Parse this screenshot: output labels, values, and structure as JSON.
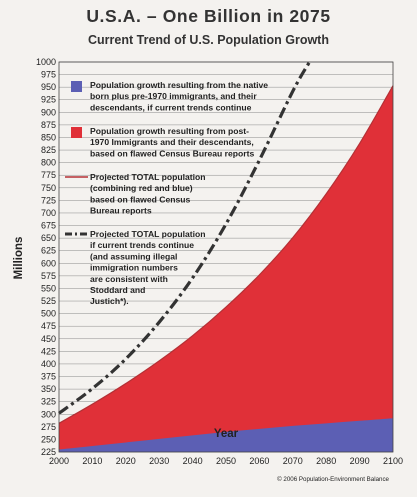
{
  "chart_data": {
    "type": "area",
    "title": "U.S.A. – One Billion in 2075",
    "subtitle": "Current Trend of U.S. Population Growth",
    "xlabel": "Year",
    "ylabel": "Millions",
    "xlim": [
      2000,
      2100
    ],
    "ylim": [
      225,
      1000
    ],
    "x_ticks": [
      2000,
      2010,
      2020,
      2030,
      2040,
      2050,
      2060,
      2070,
      2080,
      2090,
      2100
    ],
    "y_tick_step": 25,
    "x": [
      2000,
      2010,
      2020,
      2030,
      2040,
      2050,
      2060,
      2070,
      2080,
      2090,
      2100
    ],
    "series": [
      {
        "name": "Population growth resulting from the native born plus pre-1970 immigrants, and their descendants, if current trends continue",
        "color": "#5c5fb4",
        "values": [
          230,
          237,
          244,
          251,
          258,
          265,
          271,
          277,
          282,
          287,
          292
        ]
      },
      {
        "name": "Population growth resulting from post-1970 Immigrants and their descendants, based on flawed Census Bureau reports",
        "color": "#e03038",
        "values": [
          282,
          320,
          361,
          406,
          456,
          513,
          577,
          651,
          738,
          838,
          953
        ]
      },
      {
        "name": "Projected TOTAL population (combining red and blue) based on flawed Census Bureau reports",
        "color": "#b53035",
        "values": [
          282,
          320,
          361,
          406,
          456,
          513,
          577,
          651,
          738,
          838,
          953
        ]
      },
      {
        "name": "Projected TOTAL population if current trends continue (and assuming illegal immigration numbers are consistent with Stoddard and Justich*).",
        "color": "#333333",
        "style": "dash-dot",
        "x": [
          2000,
          2010,
          2020,
          2030,
          2040,
          2050,
          2060,
          2070,
          2075
        ],
        "values": [
          302,
          351,
          410,
          483,
          571,
          678,
          805,
          942,
          1000
        ]
      }
    ],
    "legend_position": "top-left",
    "grid": true,
    "credit": "© 2006 Population-Environment Balance"
  },
  "legend": [
    {
      "lines": [
        "Population growth resulting from the native",
        "born plus pre-1970 immigrants, and their",
        "descendants, if current  trends continue"
      ],
      "swatch": "blue-box"
    },
    {
      "lines": [
        "Population growth resulting from post-",
        "1970 Immigrants and their descendants,",
        "based on flawed Census Bureau reports"
      ],
      "swatch": "red-box"
    },
    {
      "lines": [
        "Projected TOTAL population",
        "(combining red and blue)",
        "based on flawed Census",
        "Bureau reports"
      ],
      "swatch": "red-line"
    },
    {
      "lines": [
        "Projected TOTAL population",
        "if current trends continue",
        "(and assuming illegal",
        "immigration numbers",
        "are consistent with",
        "Stoddard and",
        "Justich*)."
      ],
      "swatch": "dash-line"
    }
  ]
}
